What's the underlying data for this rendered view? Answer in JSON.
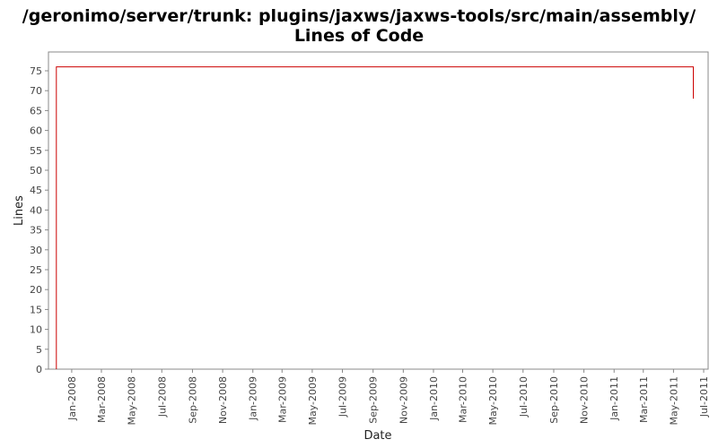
{
  "title_line1": "/geronimo/server/trunk: plugins/jaxws/jaxws-tools/src/main/assembly/",
  "title_line2": "Lines of Code",
  "chart_data": {
    "type": "line",
    "title": "/geronimo/server/trunk: plugins/jaxws/jaxws-tools/src/main/assembly/ Lines of Code",
    "xlabel": "Date",
    "ylabel": "Lines",
    "ylim": [
      0,
      78
    ],
    "xlim": [
      "2007-11-15",
      "2011-07-10"
    ],
    "yticks": [
      0,
      5,
      10,
      15,
      20,
      25,
      30,
      35,
      40,
      45,
      50,
      55,
      60,
      65,
      70,
      75
    ],
    "xticks": [
      "2008-01-01",
      "2008-03-01",
      "2008-05-01",
      "2008-07-01",
      "2008-09-01",
      "2008-11-01",
      "2009-01-01",
      "2009-03-01",
      "2009-05-01",
      "2009-07-01",
      "2009-09-01",
      "2009-11-01",
      "2010-01-01",
      "2010-03-01",
      "2010-05-01",
      "2010-07-01",
      "2010-09-01",
      "2010-11-01",
      "2011-01-01",
      "2011-03-01",
      "2011-05-01",
      "2011-07-01"
    ],
    "xtick_labels": [
      "Jan-2008",
      "Mar-2008",
      "May-2008",
      "Jul-2008",
      "Sep-2008",
      "Nov-2008",
      "Jan-2009",
      "Mar-2009",
      "May-2009",
      "Jul-2009",
      "Sep-2009",
      "Nov-2009",
      "Jan-2010",
      "Mar-2010",
      "May-2010",
      "Jul-2010",
      "Sep-2010",
      "Nov-2010",
      "Jan-2011",
      "Mar-2011",
      "May-2011",
      "Jul-2011"
    ],
    "grid": false,
    "line_color": "#cc0000",
    "step": true,
    "series": [
      {
        "points": [
          [
            "2007-12-01",
            0
          ],
          [
            "2007-12-01",
            76
          ],
          [
            "2011-06-10",
            76
          ],
          [
            "2011-06-10",
            68
          ]
        ]
      }
    ]
  }
}
